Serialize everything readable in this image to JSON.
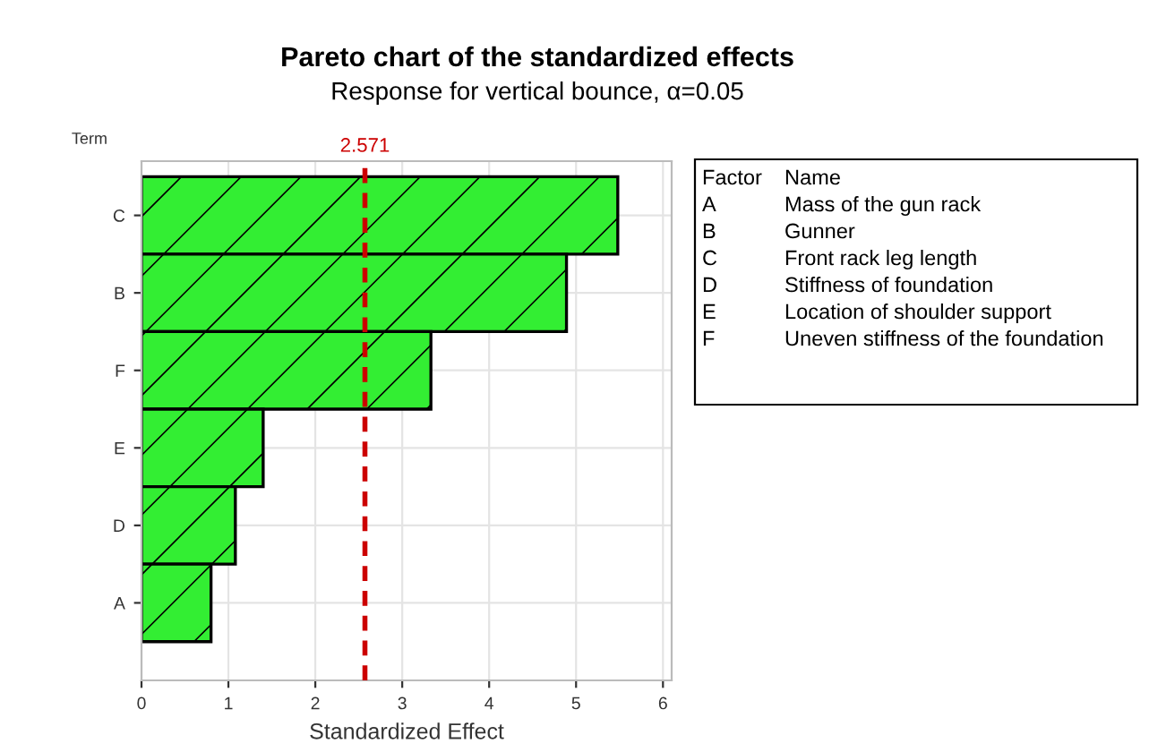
{
  "chart_data": {
    "type": "bar",
    "orientation": "horizontal",
    "title": "Pareto chart of the standardized effects",
    "subtitle": "Response for vertical bounce, α=0.05",
    "xlabel": "Standardized Effect",
    "ylabel": "Term",
    "categories": [
      "C",
      "B",
      "F",
      "E",
      "D",
      "A"
    ],
    "values": [
      5.48,
      4.89,
      3.33,
      1.4,
      1.08,
      0.8
    ],
    "color": "#33ee33",
    "xlim": [
      0,
      6.1
    ],
    "xticks": [
      0,
      1,
      2,
      3,
      4,
      5,
      6
    ],
    "grid": true,
    "ref_lines": [
      {
        "axis": "x",
        "value": 2.571,
        "label": "2.571",
        "color": "#cc0000",
        "line_style": "dashed"
      }
    ],
    "annotations": [
      "Factor",
      "Name",
      "A",
      "Mass of the gun rack",
      "B",
      "Gunner",
      "C",
      "Front rack leg length",
      "D",
      "Stiffness of foundation",
      "E",
      "Location of shoulder support",
      "F",
      "Uneven stiffness of the foundation"
    ]
  }
}
